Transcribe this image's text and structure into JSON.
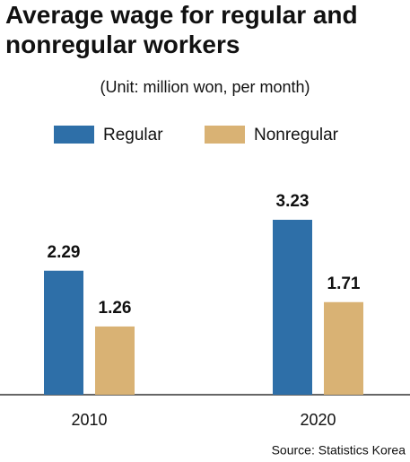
{
  "chart_data": {
    "type": "bar",
    "title": "Average wage for regular and nonregular workers",
    "subtitle": "(Unit: million won, per month)",
    "source": "Source: Statistics Korea",
    "categories": [
      "2010",
      "2020"
    ],
    "series": [
      {
        "name": "Regular",
        "color": "#2e6fa8",
        "values": [
          2.29,
          3.23
        ]
      },
      {
        "name": "Nonregular",
        "color": "#d9b274",
        "values": [
          1.26,
          1.71
        ]
      }
    ],
    "legend": "top"
  }
}
